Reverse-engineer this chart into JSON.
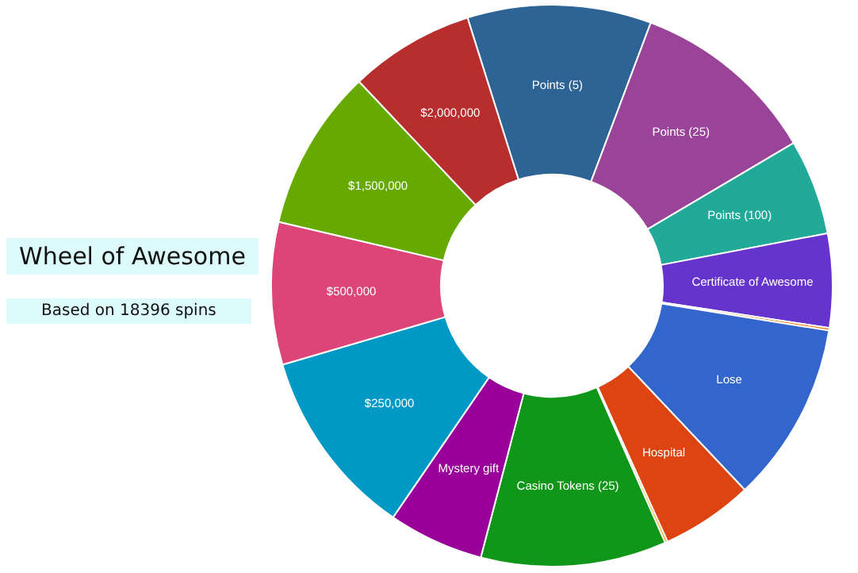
{
  "chart_data": {
    "type": "donut",
    "title": "Wheel of Awesome",
    "subtitle": "Based on 18396 spins",
    "categories": [
      "Points (5)",
      "Points (25)",
      "Points (100)",
      "Certificate of Awesome",
      null,
      "Lose",
      "Hospital",
      null,
      "Casino Tokens (25)",
      "Mystery gift",
      "$250,000",
      "$500,000",
      "$1,500,000",
      "$2,000,000"
    ],
    "values": [
      10.6,
      10.8,
      5.5,
      5.4,
      0.15,
      10.4,
      5.3,
      0.15,
      10.7,
      5.5,
      10.9,
      8.2,
      9.3,
      7.2
    ],
    "colors": [
      "#2e6495",
      "#994499",
      "#22aa99",
      "#6633cc",
      "#e67300",
      "#3366cc",
      "#dd4411",
      "#ff9900",
      "#109618",
      "#990099",
      "#0099c6",
      "#dd4477",
      "#66aa00",
      "#b82e2e"
    ]
  }
}
